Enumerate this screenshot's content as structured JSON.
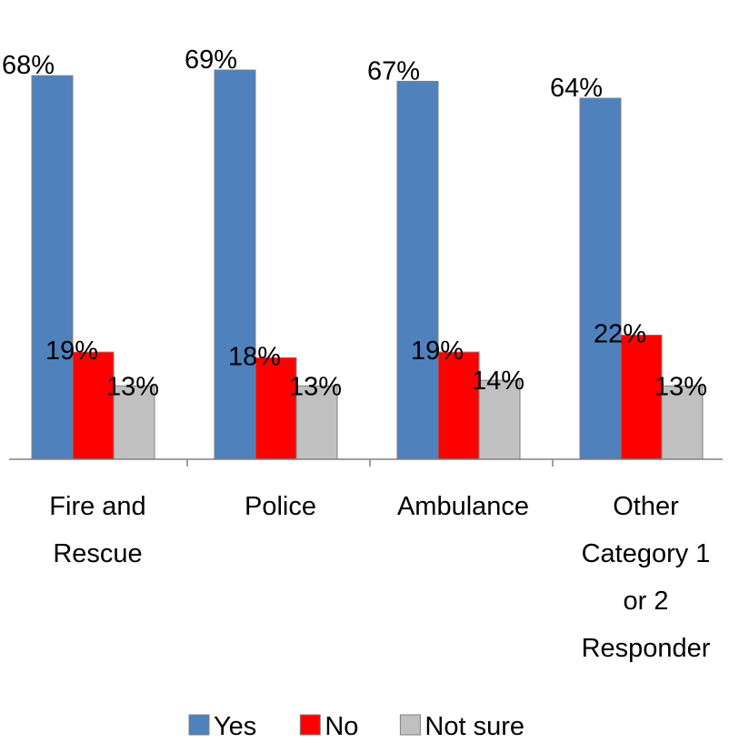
{
  "chart_data": {
    "type": "bar",
    "categories": [
      [
        "Fire and",
        "Rescue"
      ],
      [
        "Police"
      ],
      [
        "Ambulance"
      ],
      [
        "Other",
        "Category 1",
        "or 2",
        "Responder"
      ]
    ],
    "series": [
      {
        "name": "Yes",
        "color": "#4f81bd",
        "values": [
          68,
          69,
          67,
          64
        ],
        "labels": [
          "68%",
          "69%",
          "67%",
          "64%"
        ]
      },
      {
        "name": "No",
        "color": "#ff0000",
        "values": [
          19,
          18,
          19,
          22
        ],
        "labels": [
          "19%",
          "18%",
          "19%",
          "22%"
        ]
      },
      {
        "name": "Not sure",
        "color": "#c0c0c0",
        "values": [
          13,
          13,
          14,
          13
        ],
        "labels": [
          "13%",
          "13%",
          "14%",
          "13%"
        ]
      }
    ],
    "ylim": [
      0,
      69
    ],
    "grid": false,
    "legend": "bottom"
  }
}
